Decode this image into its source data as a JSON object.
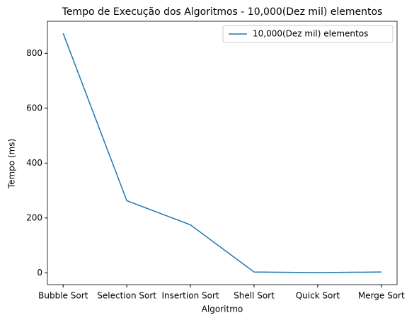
{
  "chart_data": {
    "type": "line",
    "title": "Tempo de Execução dos Algoritmos - 10,000(Dez mil) elementos",
    "x_label": "Algoritmo",
    "y_label": "Tempo (ms)",
    "categories": [
      "Bubble Sort",
      "Selection Sort",
      "Insertion Sort",
      "Shell Sort",
      "Quick Sort",
      "Merge Sort"
    ],
    "series": [
      {
        "name": "10,000(Dez mil) elementos",
        "color": "#1f77b4",
        "values": [
          873,
          263,
          175,
          3,
          1,
          3
        ]
      }
    ],
    "ylim": [
      -43,
      917
    ],
    "yticks": [
      0,
      200,
      400,
      600,
      800
    ],
    "legend": "upper right"
  }
}
